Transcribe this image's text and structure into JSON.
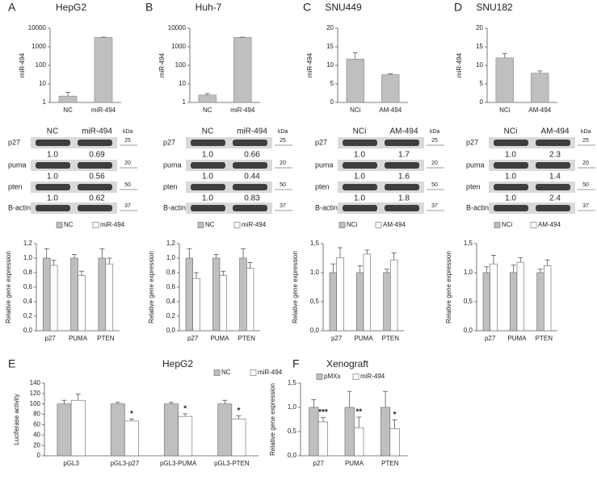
{
  "chart_data": [
    {
      "type": "bar",
      "panel": "A",
      "title": "HepG2",
      "ylabel": "miR-494",
      "categories": [
        "NC",
        "miR-494"
      ],
      "values": [
        2.2,
        3200
      ],
      "errors": [
        1.3,
        100
      ],
      "color": "#bfbfbf",
      "log_scale": true,
      "ylim": [
        1,
        10000
      ],
      "yticks": [
        1,
        10,
        100,
        1000,
        10000
      ]
    },
    {
      "type": "bar",
      "panel": "B",
      "title": "Huh-7",
      "ylabel": "miR-494",
      "categories": [
        "NC",
        "miR-494"
      ],
      "values": [
        2.5,
        3200
      ],
      "errors": [
        0.5,
        100
      ],
      "color": "#bfbfbf",
      "log_scale": true,
      "ylim": [
        1,
        10000
      ],
      "yticks": [
        1,
        10,
        100,
        1000,
        10000
      ]
    },
    {
      "type": "bar",
      "panel": "C",
      "title": "SNU449",
      "ylabel": "miR-494",
      "categories": [
        "NCi",
        "AM-494"
      ],
      "values": [
        11.7,
        7.5
      ],
      "errors": [
        1.7,
        0.2
      ],
      "color": "#bfbfbf",
      "ylim": [
        0,
        20
      ],
      "yticks": [
        0,
        5,
        10,
        15,
        20
      ]
    },
    {
      "type": "bar",
      "panel": "D",
      "title": "SNU182",
      "ylabel": "miR-494",
      "categories": [
        "NCi",
        "AM-494"
      ],
      "values": [
        12,
        7.9
      ],
      "errors": [
        1.2,
        0.6
      ],
      "color": "#bfbfbf",
      "ylim": [
        0,
        20
      ],
      "yticks": [
        0,
        5,
        10,
        15,
        20
      ]
    },
    {
      "type": "grouped_bar",
      "ylabel": "Relative gene expression",
      "categories": [
        "p27",
        "PUMA",
        "PTEN"
      ],
      "series": [
        {
          "name": "NC",
          "color": "#bfbfbf",
          "values": [
            1.0,
            1.0,
            1.0
          ],
          "errors": [
            0.13,
            0.05,
            0.13
          ]
        },
        {
          "name": "miR-494",
          "color": "#ffffff",
          "values": [
            0.9,
            0.76,
            0.92
          ],
          "errors": [
            0.07,
            0.06,
            0.08
          ]
        }
      ],
      "ylim": [
        0,
        1.2
      ],
      "yticks": [
        {
          "value": 0,
          "label": "0,0"
        },
        {
          "value": 0.2,
          "label": "0,2"
        },
        {
          "value": 0.4,
          "label": "0,4"
        },
        {
          "value": 0.6,
          "label": "0,6"
        },
        {
          "value": 0.8,
          "label": "0,8"
        },
        {
          "value": 1.0,
          "label": "1,0"
        },
        {
          "value": 1.2,
          "label": "1,2"
        }
      ]
    },
    {
      "type": "grouped_bar",
      "ylabel": "Relative gene expression",
      "categories": [
        "p27",
        "PUMA",
        "PTEN"
      ],
      "series": [
        {
          "name": "NC",
          "color": "#bfbfbf",
          "values": [
            1.0,
            1.0,
            1.0
          ],
          "errors": [
            0.13,
            0.05,
            0.13
          ]
        },
        {
          "name": "miR-494",
          "color": "#ffffff",
          "values": [
            0.72,
            0.76,
            0.86
          ],
          "errors": [
            0.08,
            0.06,
            0.08
          ]
        }
      ],
      "ylim": [
        0,
        1.2
      ],
      "yticks": [
        {
          "value": 0,
          "label": "0,0"
        },
        {
          "value": 0.2,
          "label": "0,2"
        },
        {
          "value": 0.4,
          "label": "0,4"
        },
        {
          "value": 0.6,
          "label": "0,6"
        },
        {
          "value": 0.8,
          "label": "0,8"
        },
        {
          "value": 1.0,
          "label": "1,0"
        },
        {
          "value": 1.2,
          "label": "1,2"
        }
      ]
    },
    {
      "type": "grouped_bar",
      "ylabel": "Relative gene expression",
      "categories": [
        "p27",
        "PUMA",
        "PTEN"
      ],
      "series": [
        {
          "name": "NCi",
          "color": "#bfbfbf",
          "values": [
            1.0,
            1.0,
            1.0
          ],
          "errors": [
            0.15,
            0.12,
            0.06
          ]
        },
        {
          "name": "AM-494",
          "color": "#ffffff",
          "values": [
            1.26,
            1.32,
            1.22
          ],
          "errors": [
            0.17,
            0.07,
            0.12
          ]
        }
      ],
      "ylim": [
        0,
        1.5
      ],
      "yticks": [
        {
          "value": 0,
          "label": "0,0"
        },
        {
          "value": 0.5,
          "label": "0,5"
        },
        {
          "value": 1.0,
          "label": "1,0"
        },
        {
          "value": 1.5,
          "label": "1,5"
        }
      ]
    },
    {
      "type": "grouped_bar",
      "ylabel": "Relative gene expression",
      "categories": [
        "p27",
        "PUMA",
        "PTEN"
      ],
      "series": [
        {
          "name": "NCi",
          "color": "#bfbfbf",
          "values": [
            1.0,
            1.0,
            1.0
          ],
          "errors": [
            0.1,
            0.13,
            0.06
          ]
        },
        {
          "name": "AM-494",
          "color": "#ffffff",
          "values": [
            1.15,
            1.18,
            1.12
          ],
          "errors": [
            0.15,
            0.08,
            0.1
          ]
        }
      ],
      "ylim": [
        0,
        1.5
      ],
      "yticks": [
        {
          "value": 0,
          "label": "0,0"
        },
        {
          "value": 0.5,
          "label": "0,5"
        },
        {
          "value": 1.0,
          "label": "1,0"
        },
        {
          "value": 1.5,
          "label": "1,5"
        }
      ]
    },
    {
      "type": "grouped_bar",
      "panel": "E",
      "title": "HepG2",
      "ylabel": "Luciferase activity",
      "categories": [
        "pGL3",
        "pGL3-p27",
        "pGL3-PUMA",
        "pGL3-PTEN"
      ],
      "series": [
        {
          "name": "NC",
          "color": "#bfbfbf",
          "values": [
            100,
            100,
            100,
            100
          ],
          "errors": [
            7,
            3,
            3,
            7
          ]
        },
        {
          "name": "miR-494",
          "color": "#ffffff",
          "values": [
            107,
            67,
            76,
            71
          ],
          "errors": [
            12,
            4,
            5,
            6
          ],
          "significance": [
            null,
            "*",
            "*",
            "*"
          ]
        }
      ],
      "ylim": [
        0,
        140
      ],
      "yticks": [
        0,
        20,
        40,
        60,
        80,
        100,
        120,
        140
      ]
    },
    {
      "type": "grouped_bar",
      "panel": "F",
      "title": "Xenograft",
      "ylabel": "Relative gene expression",
      "categories": [
        "p27",
        "PUMA",
        "PTEN"
      ],
      "series": [
        {
          "name": "pMXs",
          "color": "#bfbfbf",
          "values": [
            1.0,
            1.0,
            1.0
          ],
          "errors": [
            0.16,
            0.33,
            0.33
          ]
        },
        {
          "name": "miR-494",
          "color": "#ffffff",
          "values": [
            0.7,
            0.58,
            0.56
          ],
          "errors": [
            0.09,
            0.22,
            0.18
          ],
          "significance": [
            "***",
            "**",
            "*"
          ]
        }
      ],
      "ylim": [
        0,
        1.5
      ],
      "yticks": [
        {
          "value": 0,
          "label": "0,0"
        },
        {
          "value": 0.5,
          "label": "0,5"
        },
        {
          "value": 1.0,
          "label": "1,0"
        },
        {
          "value": 1.5,
          "label": "1,5"
        }
      ]
    }
  ],
  "blots": [
    {
      "columns": [
        "NC",
        "miR-494"
      ],
      "unit": "kDa",
      "rows": [
        {
          "label": "p27",
          "marker": "25",
          "quant": [
            "1.0",
            "0.69"
          ]
        },
        {
          "label": "puma",
          "marker": "20",
          "quant": [
            "1.0",
            "0.56"
          ]
        },
        {
          "label": "pten",
          "marker": "50",
          "quant": [
            "1.0",
            "0.62"
          ]
        },
        {
          "label": "B-actin",
          "marker": "37"
        }
      ]
    },
    {
      "columns": [
        "NC",
        "miR-494"
      ],
      "unit": "kDa",
      "rows": [
        {
          "label": "p27",
          "marker": "25",
          "quant": [
            "1.0",
            "0.66"
          ]
        },
        {
          "label": "puma",
          "marker": "20",
          "quant": [
            "1.0",
            "0.44"
          ]
        },
        {
          "label": "pten",
          "marker": "50",
          "quant": [
            "1.0",
            "0.83"
          ]
        },
        {
          "label": "B-actin",
          "marker": "37"
        }
      ]
    },
    {
      "columns": [
        "NCi",
        "AM-494"
      ],
      "unit": "kDa",
      "rows": [
        {
          "label": "p27",
          "marker": "25",
          "quant": [
            "1.0",
            "1.7"
          ]
        },
        {
          "label": "puma",
          "marker": "20",
          "quant": [
            "1.0",
            "1.6"
          ]
        },
        {
          "label": "pten",
          "marker": "50",
          "quant": [
            "1.0",
            "1.8"
          ]
        },
        {
          "label": "B-actin",
          "marker": "37"
        }
      ]
    },
    {
      "columns": [
        "NCi",
        "AM-494"
      ],
      "unit": "kDa",
      "rows": [
        {
          "label": "p27",
          "marker": "25",
          "quant": [
            "1.0",
            "2.3"
          ]
        },
        {
          "label": "puma",
          "marker": "20",
          "quant": [
            "1.0",
            "1.4"
          ]
        },
        {
          "label": "pten",
          "marker": "50",
          "quant": [
            "1.0",
            "2.4"
          ]
        },
        {
          "label": "B-actin",
          "marker": "37"
        }
      ]
    }
  ]
}
